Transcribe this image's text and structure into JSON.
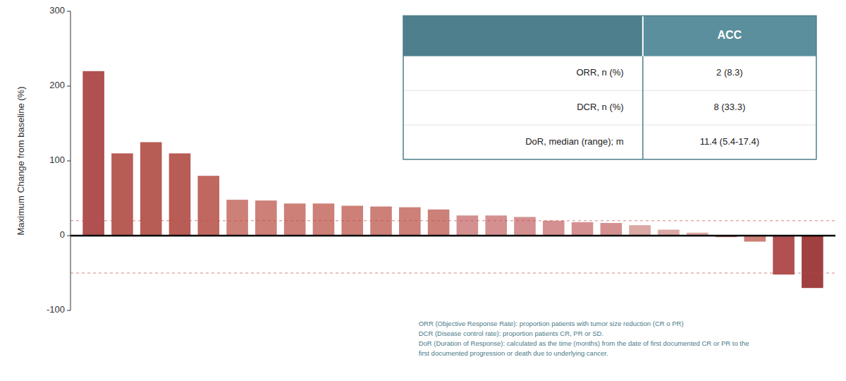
{
  "chart_data": {
    "type": "bar",
    "ylabel": "Maximum Change from baseline (%)",
    "categories": [
      null,
      null,
      null,
      null,
      null,
      null,
      null,
      null,
      null,
      null,
      null,
      null,
      null,
      null,
      null,
      null,
      null,
      null,
      null,
      null,
      null,
      null,
      null,
      null,
      null,
      null
    ],
    "values": [
      220,
      110,
      125,
      110,
      80,
      48,
      47,
      43,
      43,
      40,
      39,
      38,
      35,
      27,
      27,
      25,
      20,
      18,
      17,
      14,
      8,
      4,
      -2,
      -8,
      -52,
      -70
    ],
    "colors": [
      "#b05050",
      "#b85c56",
      "#b85c56",
      "#b85c56",
      "#c06860",
      "#cc8078",
      "#cc8078",
      "#cc8078",
      "#cc8078",
      "#cc8078",
      "#cc8078",
      "#cc8078",
      "#cc8078",
      "#d49090",
      "#d49090",
      "#d49090",
      "#d49090",
      "#d49090",
      "#d49090",
      "#dba8a4",
      "#dba8a4",
      "#dba8a4",
      "#cc8078",
      "#cc8078",
      "#b05050",
      "#a04040"
    ],
    "ylim": [
      -100,
      300
    ],
    "yticks": [
      -100,
      0,
      100,
      200,
      300
    ],
    "hlines": [
      20,
      -50
    ],
    "grid": false,
    "tick_labels": "y",
    "table": {
      "header": "ACC",
      "rows": [
        [
          "ORR, n (%)",
          "2 (8.3)"
        ],
        [
          "DCR, n (%)",
          "8 (33.3)"
        ],
        [
          "DoR, median (range); m",
          "11.4 (5.4-17.4)"
        ]
      ]
    },
    "footnotes": [
      "ORR (Objective Response Rate):  proportion patients with tumor size reduction (CR o PR)",
      "DCR (Disease control rate): proportion patients CR, PR or SD.",
      "DoR (Duration of Response): calculated as the time (months) from the date of first documented CR or PR to the",
      "first documented progression or death due to underlying cancer."
    ]
  }
}
